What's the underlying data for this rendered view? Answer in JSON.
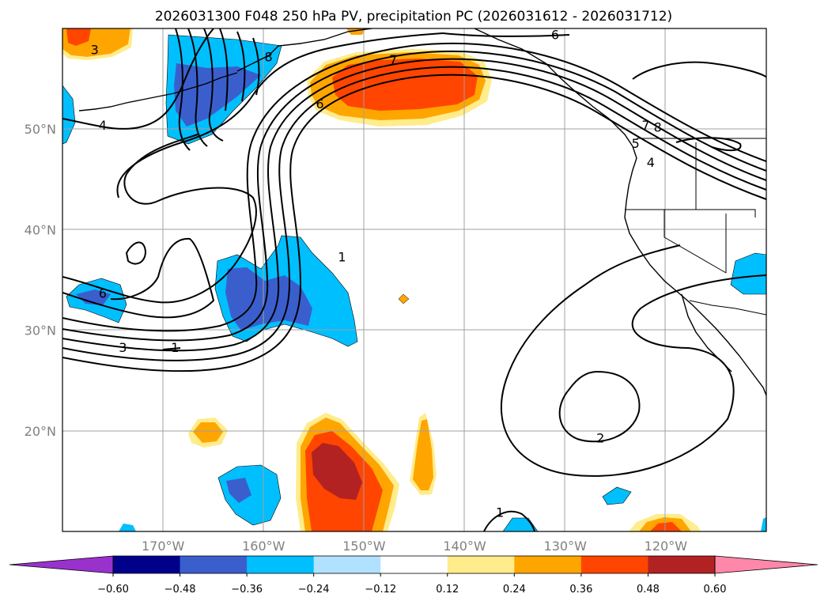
{
  "title": "2026031300 F048 250 hPa PV, precipitation PC (2026031612 - 2026031712)",
  "map": {
    "extent_lon": [
      -180,
      -110
    ],
    "extent_lat": [
      10,
      60
    ],
    "lat_labels": [
      "50°N",
      "40°N",
      "30°N",
      "20°N"
    ],
    "lat_values": [
      50,
      40,
      30,
      20
    ],
    "lon_labels": [
      "170°W",
      "160°W",
      "150°W",
      "140°W",
      "130°W",
      "120°W"
    ],
    "lon_values": [
      -170,
      -160,
      -150,
      -140,
      -130,
      -120
    ]
  },
  "contour_labels": [
    {
      "text": "6",
      "lon": -131.0,
      "lat": 59.1
    },
    {
      "text": "8",
      "lon": -159.5,
      "lat": 56.9
    },
    {
      "text": "7",
      "lon": -147.1,
      "lat": 56.6
    },
    {
      "text": "3",
      "lon": -176.8,
      "lat": 57.6
    },
    {
      "text": "6",
      "lon": -154.4,
      "lat": 52.2
    },
    {
      "text": "4",
      "lon": -176.0,
      "lat": 50.1
    },
    {
      "text": "7",
      "lon": -122.0,
      "lat": 50.1
    },
    {
      "text": "8",
      "lon": -120.8,
      "lat": 49.9
    },
    {
      "text": "5",
      "lon": -123.0,
      "lat": 48.3
    },
    {
      "text": "4",
      "lon": -121.5,
      "lat": 46.4
    },
    {
      "text": "1",
      "lon": -152.2,
      "lat": 37.0
    },
    {
      "text": "6",
      "lon": -176.0,
      "lat": 33.4
    },
    {
      "text": "3",
      "lon": -174.0,
      "lat": 28.0
    },
    {
      "text": "1",
      "lon": -168.8,
      "lat": 28.0
    },
    {
      "text": "2",
      "lon": -126.5,
      "lat": 19.0
    },
    {
      "text": "1",
      "lon": -136.5,
      "lat": 11.6
    }
  ],
  "colorbar": {
    "ticks": [
      "−0.60",
      "−0.48",
      "−0.36",
      "−0.24",
      "−0.12",
      "0.12",
      "0.24",
      "0.36",
      "0.48",
      "0.60"
    ],
    "colors": [
      "#9932cc",
      "#00008b",
      "#3a5fcd",
      "#00bfff",
      "#b0e2ff",
      "#ffffff",
      "#ffec8b",
      "#ffa500",
      "#ff4500",
      "#b22222",
      "#ff88aa"
    ]
  },
  "shading_colors": {
    "neg_light": "#b0e2ff",
    "neg_mid": "#00bfff",
    "neg_strong": "#3a5fcd",
    "pos_light": "#ffec8b",
    "pos_mid": "#ffa500",
    "pos_strong": "#ff4500",
    "pos_max": "#b22222"
  }
}
